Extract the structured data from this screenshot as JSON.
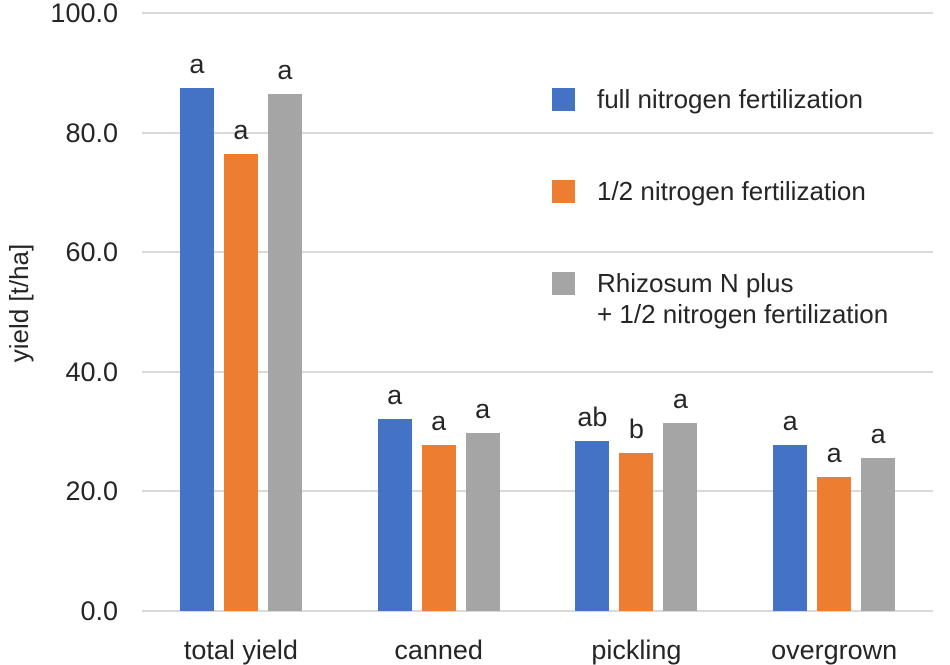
{
  "colors": {
    "background": "#ffffff",
    "gridline": "#d9d9d9",
    "text": "#262626",
    "series_blue": "#4472C4",
    "series_orange": "#ED7D31",
    "series_gray": "#A5A5A5"
  },
  "chart_data": {
    "type": "bar",
    "title": "",
    "xlabel": "",
    "ylabel": "yield [t/ha]",
    "ylim": [
      0,
      100
    ],
    "ytick_step": 20,
    "ytick_labels": [
      "0.0",
      "20.0",
      "40.0",
      "60.0",
      "80.0",
      "100.0"
    ],
    "grid": true,
    "legend_position": "inside-upper-right",
    "categories": [
      "total yield",
      "canned",
      "pickling",
      "overgrown"
    ],
    "series": [
      {
        "name": "full nitrogen fertilization",
        "legend_lines": [
          "full nitrogen fertilization"
        ],
        "color": "#4472C4",
        "values": [
          87.5,
          32.1,
          28.4,
          27.8
        ],
        "sig_labels": [
          "a",
          "a",
          "ab",
          "a"
        ]
      },
      {
        "name": "1/2 nitrogen fertilization",
        "legend_lines": [
          "1/2 nitrogen fertilization"
        ],
        "color": "#ED7D31",
        "values": [
          76.5,
          27.8,
          26.4,
          22.4
        ],
        "sig_labels": [
          "a",
          "a",
          "b",
          "a"
        ]
      },
      {
        "name": "Rhizosum N plus + 1/2 nitrogen fertilization",
        "legend_lines": [
          "Rhizosum N plus",
          "+ 1/2 nitrogen fertilization"
        ],
        "color": "#A5A5A5",
        "values": [
          86.5,
          29.8,
          31.5,
          25.6
        ],
        "sig_labels": [
          "a",
          "a",
          "a",
          "a"
        ]
      }
    ]
  }
}
